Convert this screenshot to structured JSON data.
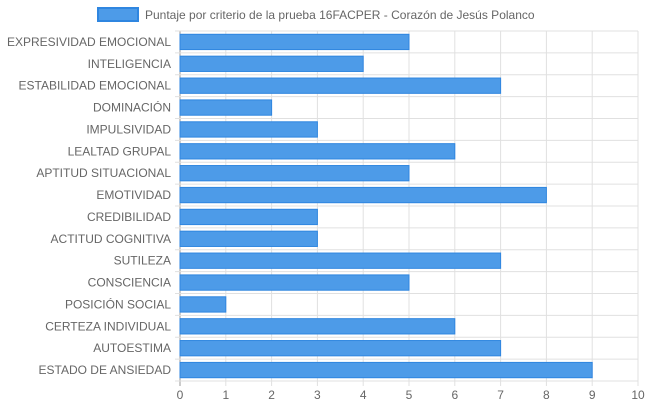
{
  "chart_data": {
    "type": "bar",
    "orientation": "horizontal",
    "categories": [
      "EXPRESIVIDAD EMOCIONAL",
      "INTELIGENCIA",
      "ESTABILIDAD EMOCIONAL",
      "DOMINACIÓN",
      "IMPULSIVIDAD",
      "LEALTAD GRUPAL",
      "APTITUD SITUACIONAL",
      "EMOTIVIDAD",
      "CREDIBILIDAD",
      "ACTITUD COGNITIVA",
      "SUTILEZA",
      "CONSCIENCIA",
      "POSICIÓN SOCIAL",
      "CERTEZA INDIVIDUAL",
      "AUTOESTIMA",
      "ESTADO DE ANSIEDAD"
    ],
    "series": [
      {
        "name": "Puntaje por criterio de la prueba 16FACPER - Corazón de Jesús Polanco",
        "values": [
          5,
          4,
          7,
          2,
          3,
          6,
          5,
          8,
          3,
          3,
          7,
          5,
          1,
          6,
          7,
          9
        ]
      }
    ],
    "xlim": [
      0,
      10
    ],
    "xticks": [
      "0",
      "1",
      "2",
      "3",
      "4",
      "5",
      "6",
      "7",
      "8",
      "9",
      "10"
    ],
    "grid": true,
    "legend_position": "top",
    "bar_color": "#4d9be8",
    "bar_border_color": "#2f86e0",
    "grid_color": "#e0e0e0"
  }
}
